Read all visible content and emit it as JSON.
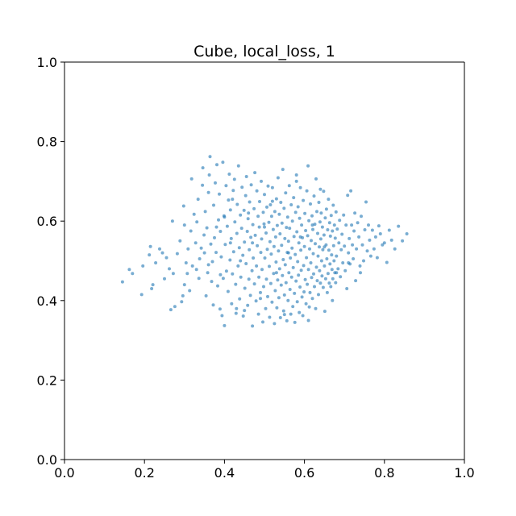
{
  "chart_data": {
    "type": "scatter",
    "title": "Cube, local_loss, 1",
    "xlabel": "",
    "ylabel": "",
    "xlim": [
      0.0,
      1.0
    ],
    "ylim": [
      0.0,
      1.0
    ],
    "grid": false,
    "color": "#1f77b4",
    "x_ticks": [
      "0.0",
      "0.2",
      "0.4",
      "0.6",
      "0.8",
      "1.0"
    ],
    "y_ticks": [
      "0.0",
      "0.2",
      "0.4",
      "0.6",
      "0.8",
      "1.0"
    ],
    "points": [
      [
        0.145,
        0.447
      ],
      [
        0.162,
        0.478
      ],
      [
        0.17,
        0.468
      ],
      [
        0.193,
        0.415
      ],
      [
        0.196,
        0.487
      ],
      [
        0.212,
        0.515
      ],
      [
        0.215,
        0.536
      ],
      [
        0.218,
        0.43
      ],
      [
        0.221,
        0.44
      ],
      [
        0.228,
        0.495
      ],
      [
        0.238,
        0.53
      ],
      [
        0.245,
        0.52
      ],
      [
        0.25,
        0.455
      ],
      [
        0.255,
        0.508
      ],
      [
        0.262,
        0.48
      ],
      [
        0.266,
        0.377
      ],
      [
        0.27,
        0.6
      ],
      [
        0.272,
        0.468
      ],
      [
        0.276,
        0.385
      ],
      [
        0.282,
        0.518
      ],
      [
        0.289,
        0.55
      ],
      [
        0.293,
        0.397
      ],
      [
        0.296,
        0.412
      ],
      [
        0.298,
        0.638
      ],
      [
        0.3,
        0.59
      ],
      [
        0.304,
        0.495
      ],
      [
        0.307,
        0.468
      ],
      [
        0.309,
        0.53
      ],
      [
        0.313,
        0.425
      ],
      [
        0.316,
        0.575
      ],
      [
        0.318,
        0.706
      ],
      [
        0.32,
        0.487
      ],
      [
        0.324,
        0.617
      ],
      [
        0.328,
        0.545
      ],
      [
        0.331,
        0.598
      ],
      [
        0.334,
        0.655
      ],
      [
        0.336,
        0.456
      ],
      [
        0.338,
        0.505
      ],
      [
        0.342,
        0.532
      ],
      [
        0.345,
        0.69
      ],
      [
        0.346,
        0.734
      ],
      [
        0.349,
        0.565
      ],
      [
        0.352,
        0.624
      ],
      [
        0.354,
        0.412
      ],
      [
        0.356,
        0.583
      ],
      [
        0.358,
        0.47
      ],
      [
        0.36,
        0.672
      ],
      [
        0.362,
        0.716
      ],
      [
        0.364,
        0.762
      ],
      [
        0.366,
        0.542
      ],
      [
        0.368,
        0.448
      ],
      [
        0.37,
        0.498
      ],
      [
        0.372,
        0.389
      ],
      [
        0.373,
        0.64
      ],
      [
        0.375,
        0.558
      ],
      [
        0.377,
        0.696
      ],
      [
        0.379,
        0.521
      ],
      [
        0.381,
        0.742
      ],
      [
        0.383,
        0.437
      ],
      [
        0.385,
        0.603
      ],
      [
        0.387,
        0.668
      ],
      [
        0.389,
        0.379
      ],
      [
        0.39,
        0.574
      ],
      [
        0.392,
        0.51
      ],
      [
        0.394,
        0.362
      ],
      [
        0.396,
        0.748
      ],
      [
        0.397,
        0.456
      ],
      [
        0.399,
        0.613
      ],
      [
        0.4,
        0.337
      ],
      [
        0.402,
        0.541
      ],
      [
        0.404,
        0.689
      ],
      [
        0.405,
        0.474
      ],
      [
        0.407,
        0.587
      ],
      [
        0.409,
        0.423
      ],
      [
        0.41,
        0.653
      ],
      [
        0.412,
        0.718
      ],
      [
        0.414,
        0.502
      ],
      [
        0.415,
        0.628
      ],
      [
        0.417,
        0.556
      ],
      [
        0.418,
        0.392
      ],
      [
        0.42,
        0.467
      ],
      [
        0.422,
        0.677
      ],
      [
        0.423,
        0.523
      ],
      [
        0.425,
        0.705
      ],
      [
        0.426,
        0.598
      ],
      [
        0.428,
        0.441
      ],
      [
        0.429,
        0.368
      ],
      [
        0.431,
        0.569
      ],
      [
        0.432,
        0.642
      ],
      [
        0.434,
        0.487
      ],
      [
        0.435,
        0.739
      ],
      [
        0.437,
        0.533
      ],
      [
        0.438,
        0.404
      ],
      [
        0.44,
        0.615
      ],
      [
        0.441,
        0.459
      ],
      [
        0.443,
        0.582
      ],
      [
        0.444,
        0.685
      ],
      [
        0.446,
        0.514
      ],
      [
        0.447,
        0.361
      ],
      [
        0.449,
        0.627
      ],
      [
        0.45,
        0.547
      ],
      [
        0.451,
        0.431
      ],
      [
        0.453,
        0.664
      ],
      [
        0.454,
        0.493
      ],
      [
        0.455,
        0.712
      ],
      [
        0.457,
        0.574
      ],
      [
        0.458,
        0.388
      ],
      [
        0.459,
        0.606
      ],
      [
        0.461,
        0.454
      ],
      [
        0.462,
        0.528
      ],
      [
        0.463,
        0.648
      ],
      [
        0.465,
        0.413
      ],
      [
        0.466,
        0.559
      ],
      [
        0.467,
        0.691
      ],
      [
        0.469,
        0.475
      ],
      [
        0.47,
        0.336
      ],
      [
        0.471,
        0.591
      ],
      [
        0.472,
        0.507
      ],
      [
        0.474,
        0.631
      ],
      [
        0.475,
        0.442
      ],
      [
        0.476,
        0.722
      ],
      [
        0.477,
        0.564
      ],
      [
        0.479,
        0.399
      ],
      [
        0.48,
        0.487
      ],
      [
        0.481,
        0.676
      ],
      [
        0.482,
        0.538
      ],
      [
        0.484,
        0.612
      ],
      [
        0.485,
        0.366
      ],
      [
        0.486,
        0.459
      ],
      [
        0.487,
        0.585
      ],
      [
        0.488,
        0.649
      ],
      [
        0.49,
        0.42
      ],
      [
        0.491,
        0.521
      ],
      [
        0.492,
        0.7
      ],
      [
        0.493,
        0.555
      ],
      [
        0.494,
        0.478
      ],
      [
        0.496,
        0.346
      ],
      [
        0.497,
        0.622
      ],
      [
        0.498,
        0.435
      ],
      [
        0.499,
        0.593
      ],
      [
        0.5,
        0.667
      ],
      [
        0.501,
        0.507
      ],
      [
        0.503,
        0.38
      ],
      [
        0.504,
        0.57
      ],
      [
        0.505,
        0.454
      ],
      [
        0.506,
        0.635
      ],
      [
        0.507,
        0.529
      ],
      [
        0.508,
        0.41
      ],
      [
        0.509,
        0.688
      ],
      [
        0.511,
        0.597
      ],
      [
        0.512,
        0.486
      ],
      [
        0.513,
        0.358
      ],
      [
        0.514,
        0.548
      ],
      [
        0.515,
        0.641
      ],
      [
        0.516,
        0.443
      ],
      [
        0.517,
        0.517
      ],
      [
        0.518,
        0.612
      ],
      [
        0.519,
        0.396
      ],
      [
        0.52,
        0.684
      ],
      [
        0.522,
        0.579
      ],
      [
        0.523,
        0.468
      ],
      [
        0.524,
        0.536
      ],
      [
        0.525,
        0.342
      ],
      [
        0.526,
        0.624
      ],
      [
        0.527,
        0.425
      ],
      [
        0.528,
        0.56
      ],
      [
        0.529,
        0.497
      ],
      [
        0.53,
        0.656
      ],
      [
        0.531,
        0.382
      ],
      [
        0.532,
        0.589
      ],
      [
        0.533,
        0.452
      ],
      [
        0.534,
        0.709
      ],
      [
        0.535,
        0.525
      ],
      [
        0.536,
        0.407
      ],
      [
        0.537,
        0.617
      ],
      [
        0.538,
        0.48
      ],
      [
        0.539,
        0.568
      ],
      [
        0.54,
        0.357
      ],
      [
        0.541,
        0.647
      ],
      [
        0.542,
        0.439
      ],
      [
        0.543,
        0.539
      ],
      [
        0.544,
        0.595
      ],
      [
        0.545,
        0.463
      ],
      [
        0.546,
        0.73
      ],
      [
        0.547,
        0.503
      ],
      [
        0.548,
        0.374
      ],
      [
        0.549,
        0.632
      ],
      [
        0.55,
        0.414
      ],
      [
        0.551,
        0.556
      ],
      [
        0.552,
        0.49
      ],
      [
        0.553,
        0.671
      ],
      [
        0.554,
        0.445
      ],
      [
        0.555,
        0.584
      ],
      [
        0.556,
        0.349
      ],
      [
        0.557,
        0.521
      ],
      [
        0.558,
        0.61
      ],
      [
        0.559,
        0.4
      ],
      [
        0.56,
        0.549
      ],
      [
        0.561,
        0.47
      ],
      [
        0.562,
        0.689
      ],
      [
        0.563,
        0.582
      ],
      [
        0.564,
        0.428
      ],
      [
        0.565,
        0.507
      ],
      [
        0.566,
        0.366
      ],
      [
        0.567,
        0.641
      ],
      [
        0.568,
        0.459
      ],
      [
        0.569,
        0.532
      ],
      [
        0.57,
        0.6
      ],
      [
        0.571,
        0.385
      ],
      [
        0.572,
        0.483
      ],
      [
        0.573,
        0.659
      ],
      [
        0.574,
        0.561
      ],
      [
        0.575,
        0.418
      ],
      [
        0.576,
        0.345
      ],
      [
        0.577,
        0.516
      ],
      [
        0.578,
        0.622
      ],
      [
        0.579,
        0.449
      ],
      [
        0.58,
        0.716
      ],
      [
        0.581,
        0.573
      ],
      [
        0.582,
        0.397
      ],
      [
        0.583,
        0.498
      ],
      [
        0.584,
        0.636
      ],
      [
        0.585,
        0.464
      ],
      [
        0.586,
        0.545
      ],
      [
        0.587,
        0.37
      ],
      [
        0.588,
        0.607
      ],
      [
        0.589,
        0.434
      ],
      [
        0.59,
        0.684
      ],
      [
        0.591,
        0.527
      ],
      [
        0.592,
        0.476
      ],
      [
        0.593,
        0.59
      ],
      [
        0.594,
        0.409
      ],
      [
        0.595,
        0.558
      ],
      [
        0.596,
        0.362
      ],
      [
        0.597,
        0.652
      ],
      [
        0.598,
        0.488
      ],
      [
        0.599,
        0.422
      ],
      [
        0.6,
        0.536
      ],
      [
        0.601,
        0.619
      ],
      [
        0.602,
        0.453
      ],
      [
        0.603,
        0.576
      ],
      [
        0.604,
        0.392
      ],
      [
        0.605,
        0.508
      ],
      [
        0.606,
        0.676
      ],
      [
        0.607,
        0.441
      ],
      [
        0.608,
        0.563
      ],
      [
        0.609,
        0.739
      ],
      [
        0.61,
        0.478
      ],
      [
        0.611,
        0.601
      ],
      [
        0.612,
        0.384
      ],
      [
        0.613,
        0.53
      ],
      [
        0.614,
        0.42
      ],
      [
        0.615,
        0.643
      ],
      [
        0.616,
        0.495
      ],
      [
        0.617,
        0.551
      ],
      [
        0.618,
        0.458
      ],
      [
        0.619,
        0.613
      ],
      [
        0.62,
        0.405
      ],
      [
        0.621,
        0.579
      ],
      [
        0.622,
        0.518
      ],
      [
        0.623,
        0.467
      ],
      [
        0.624,
        0.663
      ],
      [
        0.625,
        0.435
      ],
      [
        0.626,
        0.592
      ],
      [
        0.627,
        0.543
      ],
      [
        0.628,
        0.38
      ],
      [
        0.629,
        0.706
      ],
      [
        0.63,
        0.484
      ],
      [
        0.631,
        0.624
      ],
      [
        0.632,
        0.45
      ],
      [
        0.633,
        0.569
      ],
      [
        0.634,
        0.512
      ],
      [
        0.635,
        0.415
      ],
      [
        0.636,
        0.647
      ],
      [
        0.637,
        0.535
      ],
      [
        0.638,
        0.475
      ],
      [
        0.639,
        0.598
      ],
      [
        0.64,
        0.444
      ],
      [
        0.641,
        0.555
      ],
      [
        0.642,
        0.62
      ],
      [
        0.643,
        0.5
      ],
      [
        0.644,
        0.462
      ],
      [
        0.645,
        0.585
      ],
      [
        0.646,
        0.528
      ],
      [
        0.647,
        0.433
      ],
      [
        0.648,
        0.675
      ],
      [
        0.649,
        0.565
      ],
      [
        0.65,
        0.487
      ],
      [
        0.651,
        0.373
      ],
      [
        0.652,
        0.608
      ],
      [
        0.653,
        0.455
      ],
      [
        0.654,
        0.54
      ],
      [
        0.655,
        0.63
      ],
      [
        0.656,
        0.505
      ],
      [
        0.657,
        0.42
      ],
      [
        0.658,
        0.578
      ],
      [
        0.659,
        0.468
      ],
      [
        0.66,
        0.655
      ],
      [
        0.661,
        0.527
      ],
      [
        0.662,
        0.444
      ],
      [
        0.663,
        0.596
      ],
      [
        0.664,
        0.492
      ],
      [
        0.665,
        0.562
      ],
      [
        0.666,
        0.435
      ],
      [
        0.667,
        0.614
      ],
      [
        0.668,
        0.515
      ],
      [
        0.669,
        0.478
      ],
      [
        0.67,
        0.575
      ],
      [
        0.671,
        0.455
      ],
      [
        0.672,
        0.64
      ],
      [
        0.673,
        0.538
      ],
      [
        0.674,
        0.5
      ],
      [
        0.675,
        0.59
      ],
      [
        0.676,
        0.47
      ],
      [
        0.677,
        0.557
      ],
      [
        0.678,
        0.445
      ],
      [
        0.679,
        0.623
      ],
      [
        0.68,
        0.512
      ],
      [
        0.682,
        0.58
      ],
      [
        0.684,
        0.48
      ],
      [
        0.686,
        0.545
      ],
      [
        0.688,
        0.602
      ],
      [
        0.69,
        0.46
      ],
      [
        0.692,
        0.528
      ],
      [
        0.694,
        0.567
      ],
      [
        0.696,
        0.495
      ],
      [
        0.698,
        0.615
      ],
      [
        0.7,
        0.537
      ],
      [
        0.702,
        0.475
      ],
      [
        0.704,
        0.59
      ],
      [
        0.706,
        0.43
      ],
      [
        0.708,
        0.665
      ],
      [
        0.71,
        0.52
      ],
      [
        0.712,
        0.556
      ],
      [
        0.714,
        0.492
      ],
      [
        0.716,
        0.676
      ],
      [
        0.718,
        0.59
      ],
      [
        0.72,
        0.54
      ],
      [
        0.722,
        0.505
      ],
      [
        0.724,
        0.575
      ],
      [
        0.726,
        0.62
      ],
      [
        0.728,
        0.45
      ],
      [
        0.73,
        0.53
      ],
      [
        0.733,
        0.596
      ],
      [
        0.736,
        0.56
      ],
      [
        0.739,
        0.487
      ],
      [
        0.742,
        0.612
      ],
      [
        0.745,
        0.54
      ],
      [
        0.748,
        0.5
      ],
      [
        0.751,
        0.578
      ],
      [
        0.754,
        0.648
      ],
      [
        0.757,
        0.525
      ],
      [
        0.76,
        0.59
      ],
      [
        0.763,
        0.552
      ],
      [
        0.766,
        0.512
      ],
      [
        0.77,
        0.577
      ],
      [
        0.774,
        0.53
      ],
      [
        0.778,
        0.56
      ],
      [
        0.782,
        0.508
      ],
      [
        0.786,
        0.588
      ],
      [
        0.79,
        0.568
      ],
      [
        0.795,
        0.54
      ],
      [
        0.8,
        0.545
      ],
      [
        0.806,
        0.496
      ],
      [
        0.812,
        0.577
      ],
      [
        0.818,
        0.552
      ],
      [
        0.826,
        0.53
      ],
      [
        0.835,
        0.587
      ],
      [
        0.845,
        0.55
      ],
      [
        0.856,
        0.568
      ],
      [
        0.3,
        0.44
      ],
      [
        0.33,
        0.478
      ],
      [
        0.35,
        0.52
      ],
      [
        0.38,
        0.585
      ],
      [
        0.415,
        0.545
      ],
      [
        0.44,
        0.5
      ],
      [
        0.47,
        0.545
      ],
      [
        0.5,
        0.585
      ],
      [
        0.53,
        0.47
      ],
      [
        0.56,
        0.52
      ],
      [
        0.59,
        0.56
      ],
      [
        0.62,
        0.59
      ],
      [
        0.65,
        0.535
      ],
      [
        0.68,
        0.47
      ],
      [
        0.71,
        0.495
      ],
      [
        0.74,
        0.47
      ],
      [
        0.4,
        0.61
      ],
      [
        0.43,
        0.38
      ],
      [
        0.46,
        0.62
      ],
      [
        0.49,
        0.405
      ],
      [
        0.52,
        0.65
      ],
      [
        0.55,
        0.365
      ],
      [
        0.58,
        0.7
      ],
      [
        0.61,
        0.35
      ],
      [
        0.64,
        0.68
      ],
      [
        0.67,
        0.4
      ],
      [
        0.36,
        0.49
      ],
      [
        0.39,
        0.465
      ],
      [
        0.42,
        0.655
      ],
      [
        0.45,
        0.375
      ]
    ]
  }
}
